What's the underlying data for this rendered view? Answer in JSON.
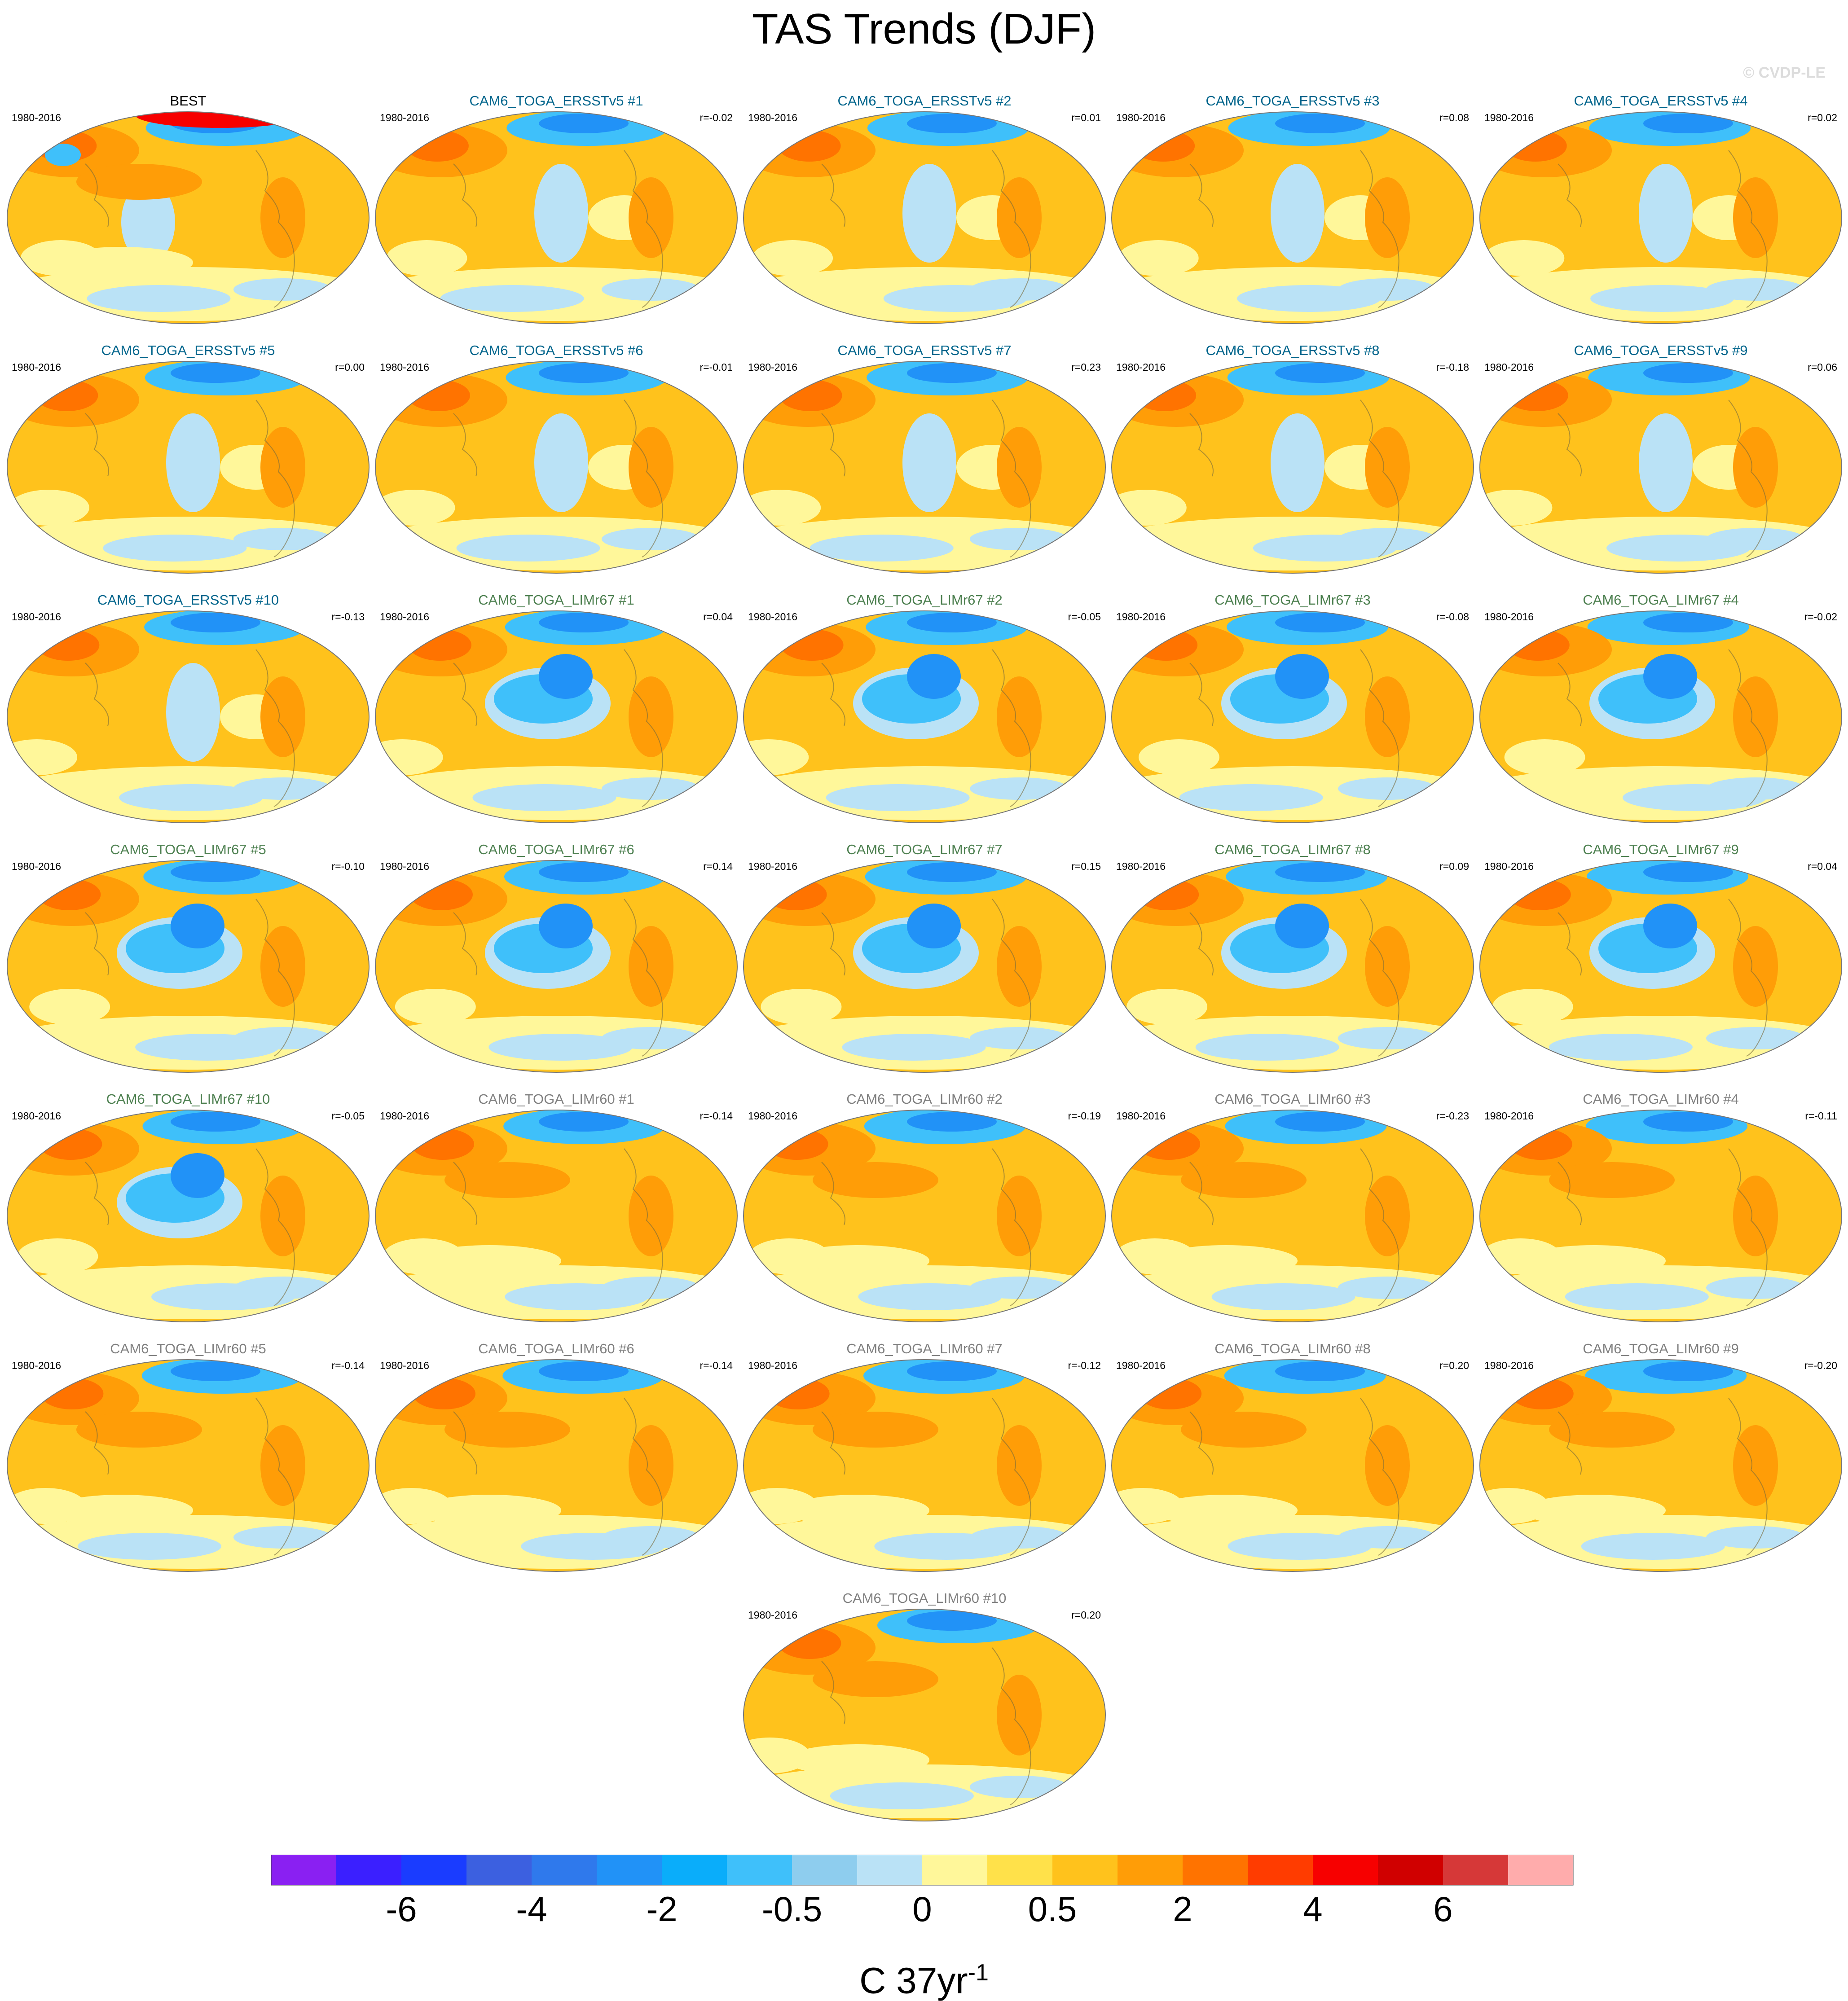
{
  "page": {
    "title": "TAS Trends (DJF)",
    "copyright": "© CVDP-LE"
  },
  "series_colors": {
    "ERSSTv5": "#00658c",
    "LIMr67": "#4d8050",
    "LIMr60": "#808080",
    "obs": "#000000"
  },
  "chart_data": {
    "type": "heatmap",
    "title": "TAS Trends (DJF)",
    "units": "C 37yr-1",
    "period": "1980-2016",
    "colorbar": {
      "colors": [
        "#8a20f2",
        "#3b1fff",
        "#1a3cff",
        "#3c60e0",
        "#2f79ec",
        "#2192f7",
        "#0aadfa",
        "#3fc0fa",
        "#8ecdee",
        "#bae2f6",
        "#fff79a",
        "#ffe14a",
        "#ffc21c",
        "#ff9d07",
        "#ff7300",
        "#ff3c00",
        "#f70000",
        "#d00000",
        "#d63838",
        "#ffacac"
      ],
      "tick_labels": [
        "-6",
        "-4",
        "-2",
        "-0.5",
        "0",
        "0.5",
        "2",
        "4",
        "6"
      ]
    },
    "panels": [
      {
        "title": "BEST",
        "period": "1980-2016",
        "r": "",
        "group": "obs"
      },
      {
        "title": "CAM6_TOGA_ERSSTv5 #1",
        "period": "1980-2016",
        "r": "r=-0.02",
        "group": "ERSSTv5"
      },
      {
        "title": "CAM6_TOGA_ERSSTv5 #2",
        "period": "1980-2016",
        "r": "r=0.01",
        "group": "ERSSTv5"
      },
      {
        "title": "CAM6_TOGA_ERSSTv5 #3",
        "period": "1980-2016",
        "r": "r=0.08",
        "group": "ERSSTv5"
      },
      {
        "title": "CAM6_TOGA_ERSSTv5 #4",
        "period": "1980-2016",
        "r": "r=0.02",
        "group": "ERSSTv5"
      },
      {
        "title": "CAM6_TOGA_ERSSTv5 #5",
        "period": "1980-2016",
        "r": "r=0.00",
        "group": "ERSSTv5"
      },
      {
        "title": "CAM6_TOGA_ERSSTv5 #6",
        "period": "1980-2016",
        "r": "r=-0.01",
        "group": "ERSSTv5"
      },
      {
        "title": "CAM6_TOGA_ERSSTv5 #7",
        "period": "1980-2016",
        "r": "r=0.23",
        "group": "ERSSTv5"
      },
      {
        "title": "CAM6_TOGA_ERSSTv5 #8",
        "period": "1980-2016",
        "r": "r=-0.18",
        "group": "ERSSTv5"
      },
      {
        "title": "CAM6_TOGA_ERSSTv5 #9",
        "period": "1980-2016",
        "r": "r=0.06",
        "group": "ERSSTv5"
      },
      {
        "title": "CAM6_TOGA_ERSSTv5 #10",
        "period": "1980-2016",
        "r": "r=-0.13",
        "group": "ERSSTv5"
      },
      {
        "title": "CAM6_TOGA_LIMr67 #1",
        "period": "1980-2016",
        "r": "r=0.04",
        "group": "LIMr67"
      },
      {
        "title": "CAM6_TOGA_LIMr67 #2",
        "period": "1980-2016",
        "r": "r=-0.05",
        "group": "LIMr67"
      },
      {
        "title": "CAM6_TOGA_LIMr67 #3",
        "period": "1980-2016",
        "r": "r=-0.08",
        "group": "LIMr67"
      },
      {
        "title": "CAM6_TOGA_LIMr67 #4",
        "period": "1980-2016",
        "r": "r=-0.02",
        "group": "LIMr67"
      },
      {
        "title": "CAM6_TOGA_LIMr67 #5",
        "period": "1980-2016",
        "r": "r=-0.10",
        "group": "LIMr67"
      },
      {
        "title": "CAM6_TOGA_LIMr67 #6",
        "period": "1980-2016",
        "r": "r=0.14",
        "group": "LIMr67"
      },
      {
        "title": "CAM6_TOGA_LIMr67 #7",
        "period": "1980-2016",
        "r": "r=0.15",
        "group": "LIMr67"
      },
      {
        "title": "CAM6_TOGA_LIMr67 #8",
        "period": "1980-2016",
        "r": "r=0.09",
        "group": "LIMr67"
      },
      {
        "title": "CAM6_TOGA_LIMr67 #9",
        "period": "1980-2016",
        "r": "r=0.04",
        "group": "LIMr67"
      },
      {
        "title": "CAM6_TOGA_LIMr67 #10",
        "period": "1980-2016",
        "r": "r=-0.05",
        "group": "LIMr67"
      },
      {
        "title": "CAM6_TOGA_LIMr60 #1",
        "period": "1980-2016",
        "r": "r=-0.14",
        "group": "LIMr60"
      },
      {
        "title": "CAM6_TOGA_LIMr60 #2",
        "period": "1980-2016",
        "r": "r=-0.19",
        "group": "LIMr60"
      },
      {
        "title": "CAM6_TOGA_LIMr60 #3",
        "period": "1980-2016",
        "r": "r=-0.23",
        "group": "LIMr60"
      },
      {
        "title": "CAM6_TOGA_LIMr60 #4",
        "period": "1980-2016",
        "r": "r=-0.11",
        "group": "LIMr60"
      },
      {
        "title": "CAM6_TOGA_LIMr60 #5",
        "period": "1980-2016",
        "r": "r=-0.14",
        "group": "LIMr60"
      },
      {
        "title": "CAM6_TOGA_LIMr60 #6",
        "period": "1980-2016",
        "r": "r=-0.14",
        "group": "LIMr60"
      },
      {
        "title": "CAM6_TOGA_LIMr60 #7",
        "period": "1980-2016",
        "r": "r=-0.12",
        "group": "LIMr60"
      },
      {
        "title": "CAM6_TOGA_LIMr60 #8",
        "period": "1980-2016",
        "r": "r=0.20",
        "group": "LIMr60"
      },
      {
        "title": "CAM6_TOGA_LIMr60 #9",
        "period": "1980-2016",
        "r": "r=-0.20",
        "group": "LIMr60"
      },
      {
        "title": "CAM6_TOGA_LIMr60 #10",
        "period": "1980-2016",
        "r": "r=0.20",
        "group": "LIMr60"
      }
    ]
  }
}
